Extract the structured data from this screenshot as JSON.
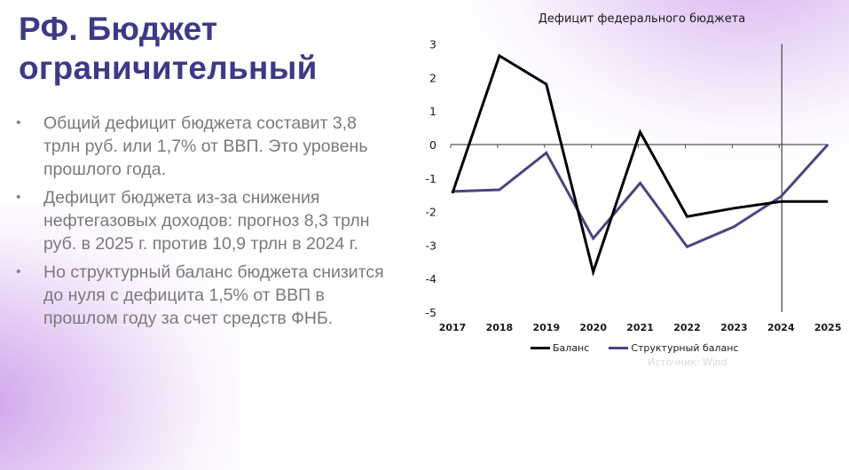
{
  "slide": {
    "title_line1": "РФ. Бюджет",
    "title_line2": "ограничительный",
    "colors": {
      "title": "#3d3a86",
      "body_text": "#7a7a7a",
      "accent_glow": "#cda0eb"
    },
    "bullets": [
      {
        "text": "Общий дефицит бюджета составит 3,8 трлн руб. или 1,7% от ВВП. Это уровень прошлого года."
      },
      {
        "text": "Дефицит бюджета из-за снижения нефтегазовых доходов: прогноз 8,3 трлн руб. в 2025 г. против 10,9 трлн в 2024 г."
      },
      {
        "text": "Но структурный баланс бюджета снизится до нуля с дефицита 1,5% от ВВП в прошлом году за счет средств ФНБ."
      }
    ],
    "bullet_glyph": "•"
  },
  "chart_data": {
    "type": "line",
    "title": "Дефицит федерального бюджета",
    "xlabel": "",
    "ylabel": "",
    "x": [
      "2017",
      "2018",
      "2019",
      "2020",
      "2021",
      "2022",
      "2023",
      "2024",
      "2025"
    ],
    "series": [
      {
        "name": "Баланс",
        "color": "#000000",
        "values": [
          -1.45,
          2.65,
          1.8,
          -3.8,
          0.37,
          -2.15,
          -1.9,
          -1.7,
          -1.7
        ]
      },
      {
        "name": "Структурный баланс",
        "color": "#4a4580",
        "values": [
          -1.4,
          -1.35,
          -0.25,
          -2.8,
          -1.15,
          -3.05,
          -2.45,
          -1.55,
          0.0
        ]
      }
    ],
    "y_ticks": [
      "3",
      "2",
      "1",
      "0",
      "-1",
      "-2",
      "-3",
      "-4",
      "-5"
    ],
    "ylim": [
      -5,
      3
    ],
    "grid": false,
    "x_axis_at": 0,
    "vertical_marker_at": "2024",
    "legend_position": "bottom"
  },
  "watermark": "Источник: Wind"
}
